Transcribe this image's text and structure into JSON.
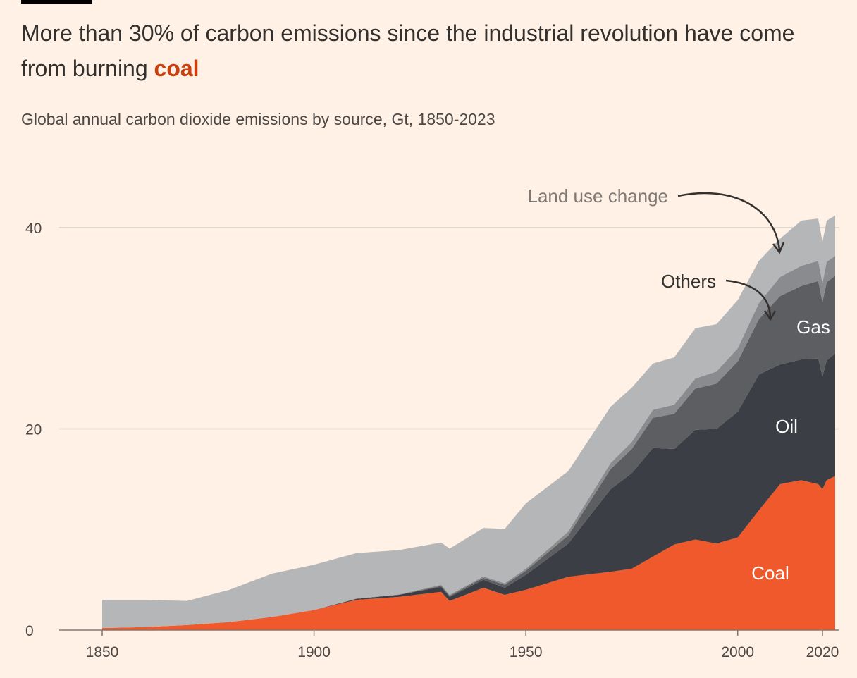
{
  "header": {
    "title_main": "More than 30% of carbon emissions since the industrial revolution have come from burning ",
    "title_highlight": "coal",
    "subtitle": "Global annual carbon dioxide emissions by source, Gt, 1850-2023"
  },
  "chart_data": {
    "type": "area",
    "stacked": true,
    "title": "More than 30% of carbon emissions since the industrial revolution have come from burning coal",
    "subtitle": "Global annual carbon dioxide emissions by source, Gt, 1850-2023",
    "xlim": [
      1850,
      2023
    ],
    "ylim": [
      0,
      40
    ],
    "x_ticks": [
      1850,
      1900,
      1950,
      2000,
      2020
    ],
    "y_ticks": [
      0,
      20,
      40
    ],
    "grid": "horizontal",
    "x": [
      1850,
      1860,
      1870,
      1880,
      1890,
      1900,
      1910,
      1920,
      1930,
      1932,
      1940,
      1945,
      1950,
      1960,
      1970,
      1975,
      1980,
      1985,
      1990,
      1995,
      2000,
      2005,
      2010,
      2015,
      2019,
      2020,
      2021,
      2023
    ],
    "series": [
      {
        "name": "Coal",
        "color": "#f0592b",
        "values": [
          0.2,
          0.3,
          0.5,
          0.8,
          1.3,
          2.0,
          3.0,
          3.3,
          3.8,
          2.9,
          4.2,
          3.5,
          4.0,
          5.3,
          5.8,
          6.1,
          7.3,
          8.5,
          9.0,
          8.6,
          9.2,
          11.9,
          14.5,
          14.9,
          14.5,
          14.0,
          14.9,
          15.3
        ]
      },
      {
        "name": "Oil",
        "color": "#3b3e44",
        "values": [
          0,
          0,
          0,
          0,
          0,
          0,
          0.1,
          0.2,
          0.5,
          0.4,
          0.8,
          0.7,
          1.5,
          3.3,
          8.2,
          9.5,
          10.8,
          9.5,
          10.9,
          11.4,
          12.5,
          13.5,
          11.9,
          12.0,
          12.5,
          11.2,
          11.9,
          12.2
        ]
      },
      {
        "name": "Gas",
        "color": "#5d5e62",
        "values": [
          0,
          0,
          0,
          0,
          0,
          0,
          0,
          0,
          0.1,
          0.1,
          0.2,
          0.3,
          0.4,
          0.8,
          2.0,
          2.4,
          3.0,
          3.5,
          4.1,
          4.5,
          5.0,
          5.5,
          6.8,
          7.3,
          7.7,
          7.4,
          7.8,
          7.7
        ]
      },
      {
        "name": "Others",
        "color": "#8a8b8e",
        "values": [
          0,
          0,
          0,
          0,
          0,
          0,
          0.05,
          0.05,
          0.1,
          0.1,
          0.15,
          0.15,
          0.2,
          0.4,
          0.6,
          0.7,
          0.8,
          0.9,
          1.0,
          1.2,
          1.3,
          1.6,
          1.9,
          2.0,
          2.0,
          1.9,
          2.0,
          2.0
        ]
      },
      {
        "name": "Land use change",
        "color": "#b5b6b8",
        "values": [
          2.8,
          2.7,
          2.4,
          3.2,
          4.3,
          4.5,
          4.5,
          4.4,
          4.2,
          4.6,
          4.8,
          5.4,
          6.5,
          6.0,
          5.6,
          5.4,
          4.6,
          4.7,
          5.0,
          4.7,
          4.8,
          4.2,
          3.8,
          4.5,
          4.2,
          4.1,
          4.1,
          4.0
        ]
      }
    ],
    "annotations": [
      "Land use change",
      "Others"
    ]
  }
}
